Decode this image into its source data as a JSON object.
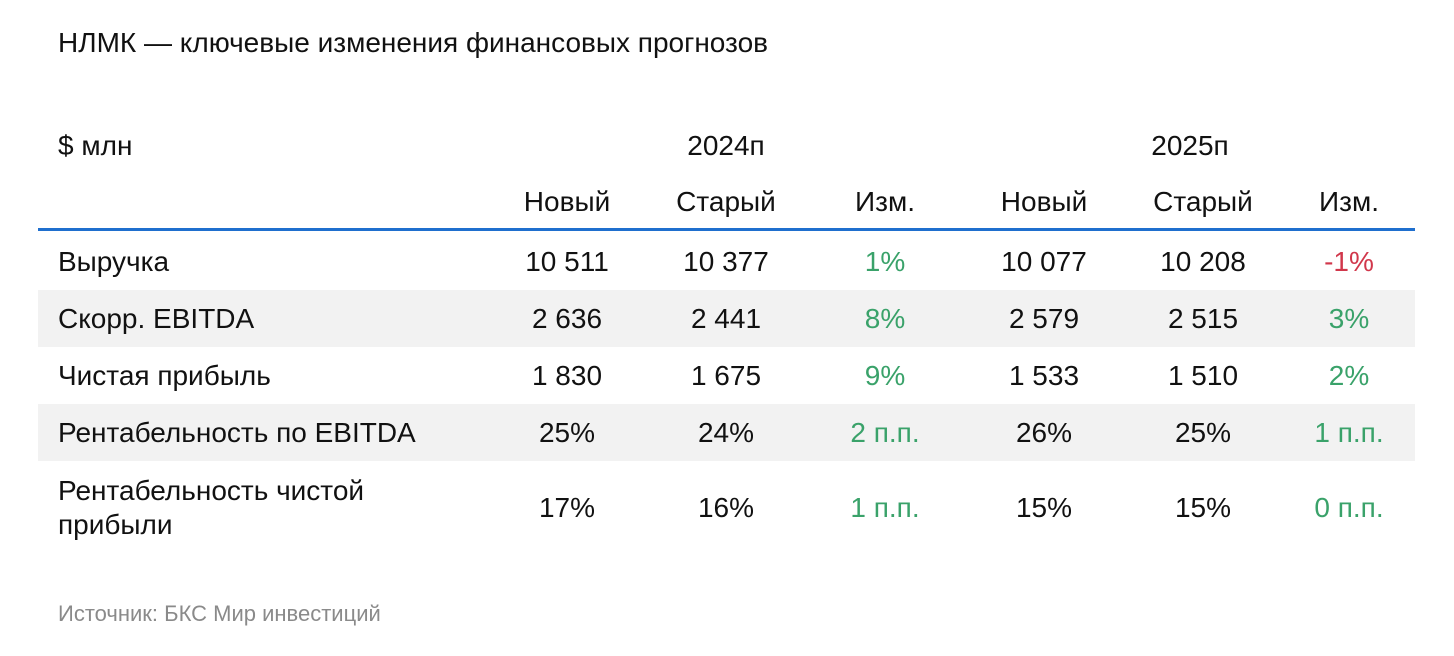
{
  "title": "НЛМК — ключевые изменения финансовых прогнозов",
  "source": "Источник: БКС Мир инвестиций",
  "colors": {
    "header_rule": "#1f6fce",
    "shaded_row": "#f2f2f2",
    "positive": "#3aa26a",
    "negative": "#d1374b",
    "source_text": "#8a8a8a"
  },
  "chart_data": {
    "type": "table",
    "unit_label": "$ млн",
    "years": [
      "2024п",
      "2025п"
    ],
    "columns": [
      "Новый",
      "Старый",
      "Изм.",
      "Новый",
      "Старый",
      "Изм."
    ],
    "rows": [
      {
        "label": "Выручка",
        "cells": [
          "10 511",
          "10 377",
          "1%",
          "10 077",
          "10 208",
          "-1%"
        ],
        "signs": [
          "",
          "",
          "pos",
          "",
          "",
          "neg"
        ],
        "shaded": false
      },
      {
        "label": "Скорр. EBITDA",
        "cells": [
          "2 636",
          "2 441",
          "8%",
          "2 579",
          "2 515",
          "3%"
        ],
        "signs": [
          "",
          "",
          "pos",
          "",
          "",
          "pos"
        ],
        "shaded": true
      },
      {
        "label": "Чистая прибыль",
        "cells": [
          "1 830",
          "1 675",
          "9%",
          "1 533",
          "1 510",
          "2%"
        ],
        "signs": [
          "",
          "",
          "pos",
          "",
          "",
          "pos"
        ],
        "shaded": false
      },
      {
        "label": "Рентабельность по EBITDA",
        "cells": [
          "25%",
          "24%",
          "2 п.п.",
          "26%",
          "25%",
          "1 п.п."
        ],
        "signs": [
          "",
          "",
          "pos",
          "",
          "",
          "pos"
        ],
        "shaded": true
      },
      {
        "label": "Рентабельность чистой прибыли",
        "cells": [
          "17%",
          "16%",
          "1 п.п.",
          "15%",
          "15%",
          "0 п.п."
        ],
        "signs": [
          "",
          "",
          "pos",
          "",
          "",
          "pos"
        ],
        "shaded": false
      }
    ]
  }
}
